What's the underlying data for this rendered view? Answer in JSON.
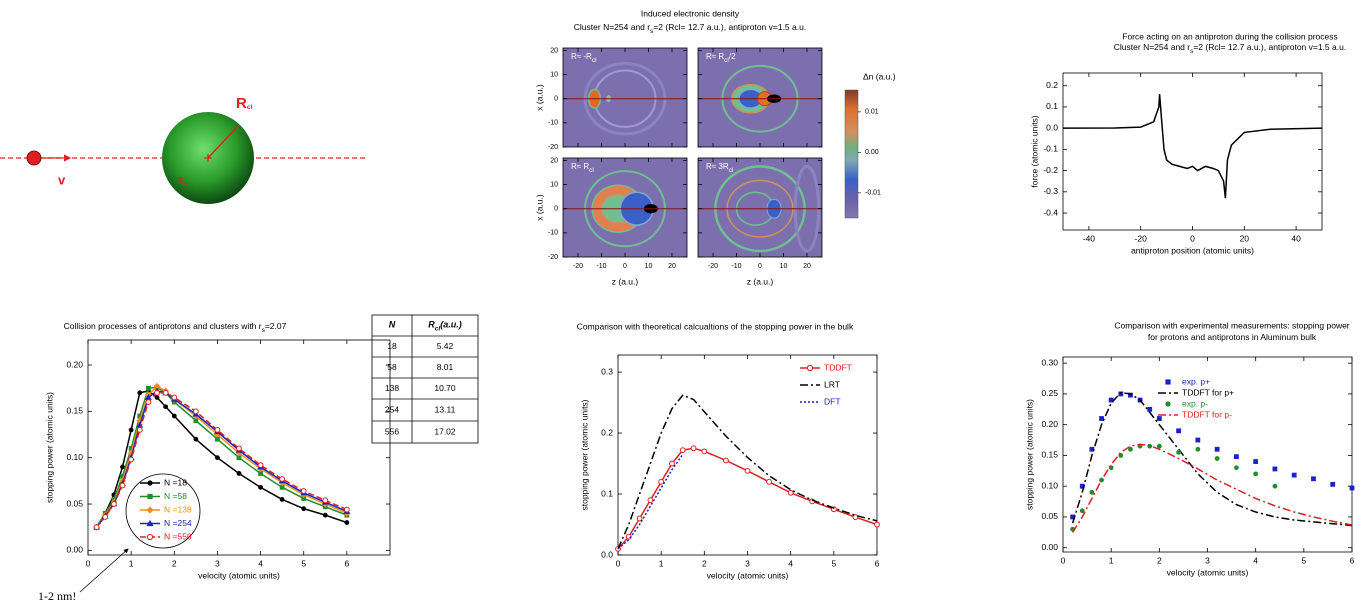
{
  "diagram": {
    "radius_label": [
      "R",
      "cl"
    ],
    "rs_label": [
      "r",
      "s"
    ],
    "velocity_label": "v"
  },
  "table": {
    "header": [
      [
        "N"
      ],
      [
        "R",
        "cl",
        "(a.u.)"
      ]
    ],
    "rows": [
      [
        "18",
        "5.42"
      ],
      [
        "58",
        "8.01"
      ],
      [
        "138",
        "10.70"
      ],
      [
        "254",
        "13.11"
      ],
      [
        "556",
        "17.02"
      ]
    ]
  },
  "chart_data": [
    {
      "type": "heatmap",
      "title": "Induced electronic density",
      "subtitle": [
        "Cluster N=254 and r",
        "s",
        "=2 (Rcl= 12.7 a.u.), antiproton v=1.5 a.u."
      ],
      "xlabel": "z (a.u.)",
      "ylabel": "x (a.u.)",
      "xlim": [
        -26.4,
        26.4
      ],
      "ylim": [
        -20,
        21
      ],
      "xticks": [
        -20,
        -10,
        0,
        10,
        20
      ],
      "yticks": [
        -20,
        -10,
        0,
        10,
        20
      ],
      "panels": [
        {
          "label": [
            "R≈ -R",
            "cl"
          ]
        },
        {
          "label": [
            "R≈ R",
            "cl",
            "/2"
          ]
        },
        {
          "label": [
            "R≈ R",
            "cl"
          ]
        },
        {
          "label": [
            "R≈ 3R",
            "cl"
          ]
        }
      ],
      "colorbar": {
        "label": "Δn (a.u.)",
        "lim": [
          -0.0162,
          0.0154
        ],
        "ticks": [
          {
            "value": 0.01,
            "label": "0.01"
          },
          {
            "value": 0,
            "label": "0.00"
          },
          {
            "value": -0.01,
            "label": "-0.01"
          }
        ]
      }
    },
    {
      "type": "line",
      "title": "Force acting on an antiproton during the collision process",
      "subtitle": [
        "Cluster N=254 and r",
        "s",
        "=2 (Rcl= 12.7 a.u.), antiproton v=1.5 a.u."
      ],
      "xlabel": "antiproton position (atomic units)",
      "ylabel": "force (atomic units)",
      "xlim": [
        -50,
        50
      ],
      "ylim": [
        -0.48,
        0.26
      ],
      "xticks": [
        -40,
        -20,
        0,
        20,
        40
      ],
      "yticks": [
        -0.4,
        -0.3,
        -0.2,
        -0.1,
        {
          "value": 0,
          "label": "0.0"
        },
        0.1,
        0.2
      ],
      "x": [
        -50,
        -30,
        -20,
        -15,
        -13,
        -12.7,
        -12,
        -11,
        -10,
        -8,
        -5,
        -2,
        0,
        2,
        5,
        8,
        10,
        12,
        12.7,
        13.5,
        15,
        20,
        30,
        50
      ],
      "values": [
        0,
        0.001,
        0.005,
        0.03,
        0.1,
        0.16,
        0.05,
        -0.1,
        -0.15,
        -0.17,
        -0.18,
        -0.19,
        -0.18,
        -0.2,
        -0.18,
        -0.19,
        -0.2,
        -0.25,
        -0.33,
        -0.15,
        -0.08,
        -0.02,
        -0.005,
        0
      ],
      "color": "#000000"
    },
    {
      "type": "line",
      "title": [
        "Collision processes of antiprotons and clusters with r",
        "s",
        "=2.07"
      ],
      "xlabel": "velocity (atomic units)",
      "ylabel": "stopping power (atomic units)",
      "annotation": "1-2 nm!",
      "xlim": [
        0,
        7
      ],
      "ylim": [
        -0.005,
        0.227
      ],
      "xticks": [
        0,
        1,
        2,
        3,
        4,
        5,
        6
      ],
      "yticks": [
        {
          "value": 0,
          "label": "0.00"
        },
        {
          "value": 0.05,
          "label": "0.05"
        },
        {
          "value": 0.1,
          "label": "0.10"
        },
        {
          "value": 0.15,
          "label": "0.15"
        },
        {
          "value": 0.2,
          "label": "0.20"
        }
      ],
      "x": [
        0.2,
        0.4,
        0.6,
        0.8,
        1.0,
        1.2,
        1.4,
        1.6,
        1.8,
        2.0,
        2.5,
        3,
        3.5,
        4,
        4.5,
        5,
        5.5,
        6
      ],
      "series": [
        {
          "name": "N =18",
          "color": "#000000",
          "marker": "circle",
          "values": [
            0.025,
            0.04,
            0.06,
            0.09,
            0.13,
            0.17,
            0.172,
            0.165,
            0.155,
            0.145,
            0.12,
            0.1,
            0.083,
            0.068,
            0.055,
            0.045,
            0.038,
            0.03
          ]
        },
        {
          "name": "N =58",
          "color": "#1f8f2a",
          "marker": "square",
          "values": [
            0.025,
            0.04,
            0.055,
            0.08,
            0.11,
            0.145,
            0.175,
            0.176,
            0.17,
            0.16,
            0.14,
            0.12,
            0.1,
            0.083,
            0.068,
            0.056,
            0.047,
            0.038
          ]
        },
        {
          "name": "N =138",
          "color": "#f0901a",
          "marker": "diamond",
          "values": [
            0.025,
            0.038,
            0.052,
            0.075,
            0.105,
            0.14,
            0.168,
            0.177,
            0.172,
            0.163,
            0.145,
            0.125,
            0.105,
            0.088,
            0.073,
            0.06,
            0.05,
            0.04
          ]
        },
        {
          "name": "N =254",
          "color": "#1a22c8",
          "marker": "triangle",
          "values": [
            0.025,
            0.037,
            0.05,
            0.072,
            0.1,
            0.135,
            0.165,
            0.172,
            0.17,
            0.163,
            0.147,
            0.128,
            0.108,
            0.09,
            0.075,
            0.062,
            0.052,
            0.042
          ]
        },
        {
          "name": "N =556",
          "color": "#e02020",
          "marker": "open-circle",
          "dash": "dashed",
          "values": [
            0.025,
            0.036,
            0.05,
            0.07,
            0.098,
            0.13,
            0.16,
            0.17,
            0.17,
            0.165,
            0.15,
            0.13,
            0.11,
            0.092,
            0.077,
            0.064,
            0.054,
            0.044
          ]
        }
      ]
    },
    {
      "type": "line",
      "title": "Comparison with theoretical calcualtions of the stopping power in the bulk",
      "xlabel": "velocity (atomic units)",
      "ylabel": "stopping power (atomic units)",
      "xlim": [
        0,
        6
      ],
      "ylim": [
        0,
        0.328
      ],
      "xticks": [
        0,
        1,
        2,
        3,
        4,
        5,
        6
      ],
      "yticks": [
        {
          "value": 0,
          "label": "0.0"
        },
        0.1,
        0.2,
        0.3
      ],
      "x": [
        0,
        0.25,
        0.5,
        0.75,
        1,
        1.25,
        1.5,
        1.75,
        2,
        2.5,
        3,
        3.5,
        4,
        4.5,
        5,
        5.5,
        6
      ],
      "series": [
        {
          "name": "TDDFT",
          "color": "#e02020",
          "marker": "open-circle",
          "values": [
            0.01,
            0.03,
            0.06,
            0.09,
            0.12,
            0.15,
            0.172,
            0.175,
            0.17,
            0.155,
            0.138,
            0.12,
            0.102,
            0.088,
            0.075,
            0.062,
            0.05
          ]
        },
        {
          "name": "LRT",
          "color": "#000000",
          "dash": "dashdot",
          "values": [
            0.01,
            0.05,
            0.1,
            0.15,
            0.2,
            0.24,
            0.262,
            0.255,
            0.235,
            0.195,
            0.16,
            0.13,
            0.107,
            0.09,
            0.077,
            0.065,
            0.056
          ]
        },
        {
          "name": "DFT",
          "color": "#1a22c8",
          "dash": "dotted",
          "values": [
            0.01,
            0.025,
            0.05,
            0.08,
            0.11,
            0.14,
            0.165,
            null,
            null,
            null,
            null,
            null,
            null,
            null,
            null,
            null,
            null
          ]
        }
      ]
    },
    {
      "type": "line",
      "title": "Comparison with experimental measurements: stopping power",
      "subtitle": [
        "for protons and antiprotons in Aluminum bulk"
      ],
      "xlabel": "velocity (atomic units)",
      "ylabel": "stopping power (atomic units)",
      "xlim": [
        0,
        6
      ],
      "ylim": [
        -0.007,
        0.31
      ],
      "xticks": [
        0,
        1,
        2,
        3,
        4,
        5,
        6
      ],
      "yticks": [
        {
          "value": 0,
          "label": "0.00"
        },
        {
          "value": 0.05,
          "label": "0.05"
        },
        {
          "value": 0.1,
          "label": "0.10"
        },
        {
          "value": 0.15,
          "label": "0.15"
        },
        {
          "value": 0.2,
          "label": "0.20"
        },
        {
          "value": 0.25,
          "label": "0.25"
        },
        {
          "value": 0.3,
          "label": "0.30"
        }
      ],
      "x": [
        0.2,
        0.4,
        0.6,
        0.8,
        1.0,
        1.2,
        1.4,
        1.6,
        1.8,
        2.0,
        2.4,
        2.8,
        3.2,
        3.6,
        4.0,
        4.4,
        4.8,
        5.2,
        5.6,
        6.0
      ],
      "series": [
        {
          "name": "exp. p+",
          "color": "#1a22c8",
          "marker": "square",
          "line": false,
          "values": [
            0.05,
            0.1,
            0.16,
            0.21,
            0.24,
            0.25,
            0.248,
            0.24,
            0.225,
            0.21,
            0.19,
            0.175,
            0.16,
            0.148,
            0.14,
            0.128,
            0.118,
            0.112,
            0.103,
            0.097
          ]
        },
        {
          "name": "TDDFT for p+",
          "color": "#000000",
          "dash": "dashdot",
          "values": [
            0.04,
            0.09,
            0.15,
            0.2,
            0.235,
            0.252,
            0.25,
            0.24,
            0.22,
            0.2,
            0.16,
            0.12,
            0.09,
            0.07,
            0.058,
            0.05,
            0.045,
            0.042,
            0.039,
            0.036
          ]
        },
        {
          "name": "exp. p-",
          "color": "#1f8f2a",
          "marker": "circle",
          "line": false,
          "values": [
            0.03,
            0.06,
            0.09,
            0.11,
            0.13,
            0.15,
            0.16,
            0.165,
            0.165,
            0.165,
            0.155,
            0.16,
            0.145,
            0.13,
            0.12,
            0.1,
            null,
            null,
            null,
            null
          ]
        },
        {
          "name": "TDDFT for p-",
          "color": "#e02020",
          "dash": "dashdot",
          "values": [
            0.025,
            0.05,
            0.08,
            0.11,
            0.135,
            0.155,
            0.165,
            0.168,
            0.166,
            0.16,
            0.145,
            0.128,
            0.11,
            0.095,
            0.08,
            0.068,
            0.058,
            0.05,
            0.043,
            0.037
          ]
        }
      ]
    }
  ]
}
